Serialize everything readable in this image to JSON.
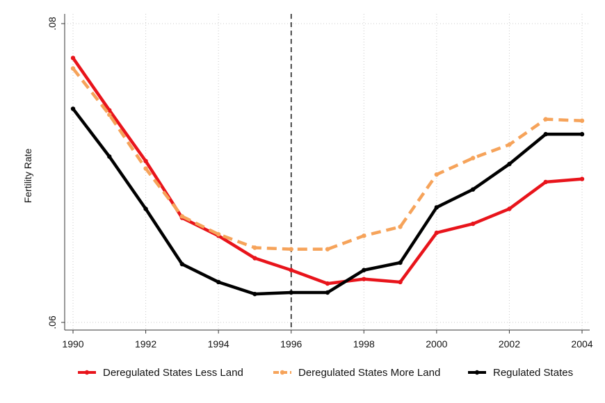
{
  "chart_data": {
    "type": "line",
    "title": "",
    "xlabel": "",
    "ylabel": "Fertility Rate",
    "x": [
      1990,
      1991,
      1992,
      1993,
      1994,
      1995,
      1996,
      1997,
      1998,
      1999,
      2000,
      2001,
      2002,
      2003,
      2004
    ],
    "xticks": [
      1990,
      1992,
      1994,
      1996,
      1998,
      2000,
      2002,
      2004
    ],
    "xtick_labels": [
      "1990",
      "1992",
      "1994",
      "1996",
      "1998",
      "2000",
      "2002",
      "2004"
    ],
    "xlim": [
      1990,
      2004
    ],
    "yticks": [
      0.06,
      0.08
    ],
    "ytick_labels": [
      ".06",
      ".08"
    ],
    "ylim": [
      0.06,
      0.08
    ],
    "grid": "dotted horizontal and vertical lines at tick positions",
    "reference_line": {
      "x": 1996,
      "style": "dashed",
      "color": "#111111"
    },
    "legend_position": "bottom",
    "series": [
      {
        "name": "Deregulated States Less Land",
        "color": "#e8141b",
        "dash": "solid",
        "values": [
          0.0777,
          0.0742,
          0.0708,
          0.067,
          0.0658,
          0.0643,
          0.0635,
          0.0626,
          0.0629,
          0.0627,
          0.066,
          0.0666,
          0.0676,
          0.0694,
          0.0696
        ]
      },
      {
        "name": "Deregulated States More Land",
        "color": "#f6a35a",
        "dash": "dashed",
        "values": [
          0.077,
          0.0739,
          0.0703,
          0.0671,
          0.0659,
          0.065,
          0.0649,
          0.0649,
          0.0658,
          0.0664,
          0.0699,
          0.071,
          0.0719,
          0.0736,
          0.0735
        ]
      },
      {
        "name": "Regulated States",
        "color": "#000000",
        "dash": "solid",
        "values": [
          0.0743,
          0.0711,
          0.0676,
          0.0639,
          0.0627,
          0.0619,
          0.062,
          0.062,
          0.0635,
          0.064,
          0.0677,
          0.0689,
          0.0706,
          0.0726,
          0.0726
        ]
      }
    ]
  }
}
